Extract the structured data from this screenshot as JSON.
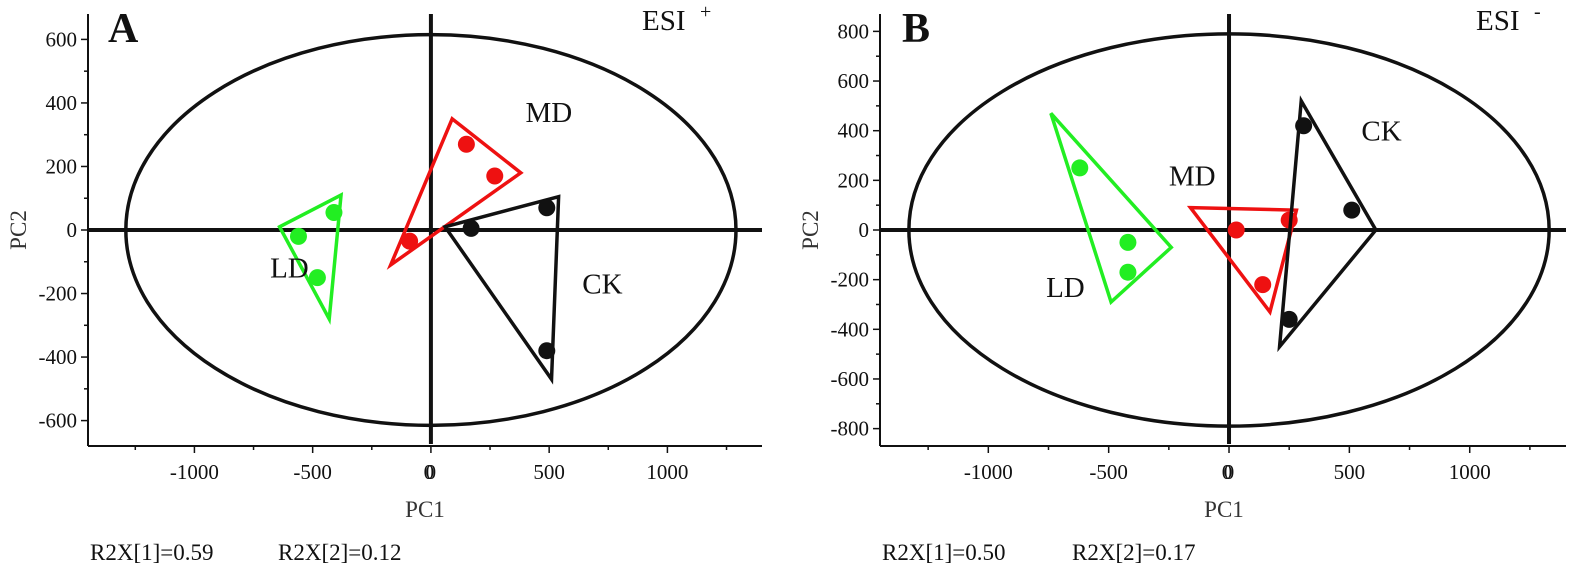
{
  "chart_data": [
    {
      "type": "scatter",
      "panel_letter": "A",
      "ion_mode": "ESI",
      "ion_sign": "+",
      "xlabel": "PC1",
      "ylabel": "PC2",
      "xlim": [
        -1450,
        1400
      ],
      "ylim": [
        -680,
        680
      ],
      "x_ticks": [
        -1000,
        -500,
        0,
        500,
        1000
      ],
      "y_ticks": [
        -600,
        -400,
        -200,
        0,
        200,
        400,
        600
      ],
      "ellipse": {
        "rx": 1290,
        "ry": 615
      },
      "groups": [
        {
          "name": "LD",
          "color": "#22ee22",
          "points": [
            [
              -560,
              -20
            ],
            [
              -410,
              55
            ],
            [
              -480,
              -150
            ]
          ],
          "polygon": [
            [
              -640,
              10
            ],
            [
              -380,
              110
            ],
            [
              -430,
              -280
            ]
          ],
          "label_at": [
            -680,
            -150
          ]
        },
        {
          "name": "MD",
          "color": "#ee1111",
          "points": [
            [
              150,
              270
            ],
            [
              270,
              170
            ],
            [
              -90,
              -35
            ]
          ],
          "polygon": [
            [
              90,
              350
            ],
            [
              380,
              180
            ],
            [
              -170,
              -110
            ]
          ],
          "label_at": [
            400,
            340
          ]
        },
        {
          "name": "CK",
          "color": "#111111",
          "points": [
            [
              490,
              70
            ],
            [
              170,
              5
            ],
            [
              490,
              -380
            ]
          ],
          "polygon": [
            [
              540,
              105
            ],
            [
              60,
              10
            ],
            [
              510,
              -470
            ]
          ],
          "label_at": [
            640,
            -200
          ]
        }
      ],
      "stats": {
        "r2x1": "R2X[1]=0.59",
        "r2x2": "R2X[2]=0.12"
      }
    },
    {
      "type": "scatter",
      "panel_letter": "B",
      "ion_mode": "ESI",
      "ion_sign": "-",
      "xlabel": "PC1",
      "ylabel": "PC2",
      "xlim": [
        -1450,
        1400
      ],
      "ylim": [
        -870,
        870
      ],
      "x_ticks": [
        -1000,
        -500,
        0,
        500,
        1000
      ],
      "y_ticks": [
        -800,
        -600,
        -400,
        -200,
        0,
        200,
        400,
        600,
        800
      ],
      "ellipse": {
        "rx": 1330,
        "ry": 790
      },
      "groups": [
        {
          "name": "LD",
          "color": "#22ee22",
          "points": [
            [
              -620,
              250
            ],
            [
              -420,
              -50
            ],
            [
              -420,
              -170
            ]
          ],
          "polygon": [
            [
              -740,
              470
            ],
            [
              -240,
              -70
            ],
            [
              -490,
              -290
            ]
          ],
          "label_at": [
            -760,
            -270
          ]
        },
        {
          "name": "MD",
          "color": "#ee1111",
          "points": [
            [
              30,
              0
            ],
            [
              250,
              40
            ],
            [
              140,
              -220
            ]
          ],
          "polygon": [
            [
              -160,
              90
            ],
            [
              280,
              80
            ],
            [
              170,
              -330
            ]
          ],
          "label_at": [
            -250,
            180
          ]
        },
        {
          "name": "CK",
          "color": "#111111",
          "points": [
            [
              310,
              420
            ],
            [
              510,
              80
            ],
            [
              250,
              -360
            ]
          ],
          "polygon": [
            [
              300,
              520
            ],
            [
              610,
              0
            ],
            [
              210,
              -470
            ]
          ],
          "label_at": [
            550,
            360
          ]
        }
      ],
      "stats": {
        "r2x1": "R2X[1]=0.50",
        "r2x2": "R2X[2]=0.17"
      }
    }
  ]
}
